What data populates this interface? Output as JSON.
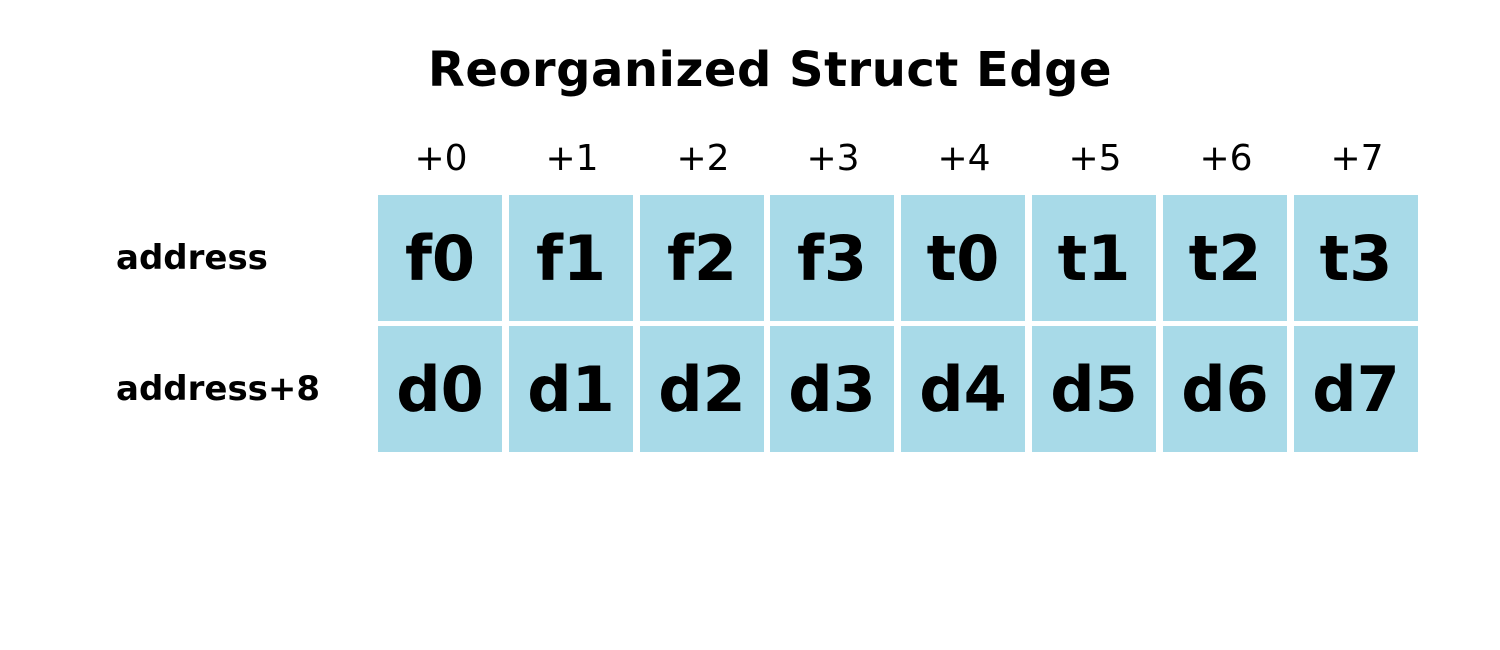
{
  "title": "Reorganized Struct Edge",
  "offsets": [
    "+0",
    "+1",
    "+2",
    "+3",
    "+4",
    "+5",
    "+6",
    "+7"
  ],
  "rows": [
    {
      "label": "address",
      "cells": [
        "f0",
        "f1",
        "f2",
        "f3",
        "t0",
        "t1",
        "t2",
        "t3"
      ]
    },
    {
      "label": "address+8",
      "cells": [
        "d0",
        "d1",
        "d2",
        "d3",
        "d4",
        "d5",
        "d6",
        "d7"
      ]
    }
  ],
  "colors": {
    "cell_fill": "#a8dae8",
    "text": "#000000",
    "background": "#ffffff"
  }
}
